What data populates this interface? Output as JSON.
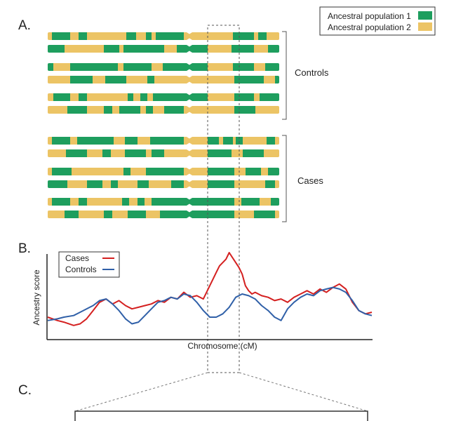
{
  "panels": {
    "a": "A.",
    "b": "B.",
    "c": "C."
  },
  "legend": {
    "items": [
      {
        "label": "Ancestral population 1",
        "color": "#1e9e5e"
      },
      {
        "label": "Ancestral population 2",
        "color": "#ecc465"
      }
    ]
  },
  "groups": {
    "controls": "Controls",
    "cases": "Cases"
  },
  "colors": {
    "pop1": "#1e9e5e",
    "pop2": "#ecc465",
    "cases_line": "#d42020",
    "controls_line": "#3060a8",
    "dash": "#555555"
  },
  "chart_data": {
    "type": "line",
    "title": "",
    "xlabel": "Chromosome (cM)",
    "ylabel": "Ancestry score",
    "xlim": [
      0,
      100
    ],
    "ylim": [
      0,
      100
    ],
    "legend_position": "top-left",
    "series": [
      {
        "name": "Cases",
        "color": "#d42020",
        "x": [
          0,
          3,
          5,
          8,
          10,
          12,
          14,
          16,
          18,
          20,
          22,
          24,
          26,
          28,
          30,
          32,
          34,
          36,
          38,
          40,
          42,
          44,
          46,
          48,
          50,
          51,
          52,
          53,
          54,
          55,
          56,
          57,
          58,
          59,
          60,
          61,
          62,
          63,
          64,
          65,
          66,
          68,
          70,
          72,
          74,
          76,
          78,
          80,
          82,
          84,
          86,
          88,
          90,
          92,
          94,
          96,
          98,
          100
        ],
        "values": [
          22,
          18,
          16,
          12,
          14,
          20,
          30,
          40,
          44,
          38,
          42,
          36,
          32,
          34,
          36,
          38,
          42,
          40,
          46,
          44,
          52,
          46,
          48,
          44,
          60,
          68,
          76,
          84,
          88,
          92,
          100,
          94,
          88,
          82,
          74,
          60,
          54,
          50,
          52,
          50,
          48,
          46,
          42,
          44,
          40,
          46,
          50,
          54,
          50,
          56,
          52,
          58,
          62,
          56,
          40,
          30,
          26,
          28
        ]
      },
      {
        "name": "Controls",
        "color": "#3060a8",
        "x": [
          0,
          3,
          5,
          8,
          10,
          12,
          14,
          16,
          18,
          20,
          22,
          24,
          26,
          28,
          30,
          32,
          34,
          36,
          38,
          40,
          42,
          44,
          46,
          48,
          50,
          52,
          54,
          56,
          58,
          60,
          62,
          64,
          66,
          68,
          70,
          72,
          74,
          76,
          78,
          80,
          82,
          84,
          86,
          88,
          90,
          92,
          94,
          96,
          98,
          100
        ],
        "values": [
          18,
          20,
          22,
          24,
          28,
          32,
          36,
          42,
          44,
          38,
          30,
          20,
          14,
          16,
          24,
          32,
          40,
          42,
          46,
          44,
          50,
          48,
          40,
          30,
          22,
          22,
          26,
          34,
          46,
          50,
          48,
          44,
          36,
          30,
          22,
          18,
          32,
          40,
          46,
          50,
          48,
          54,
          56,
          58,
          56,
          52,
          42,
          30,
          26,
          24
        ]
      }
    ]
  }
}
